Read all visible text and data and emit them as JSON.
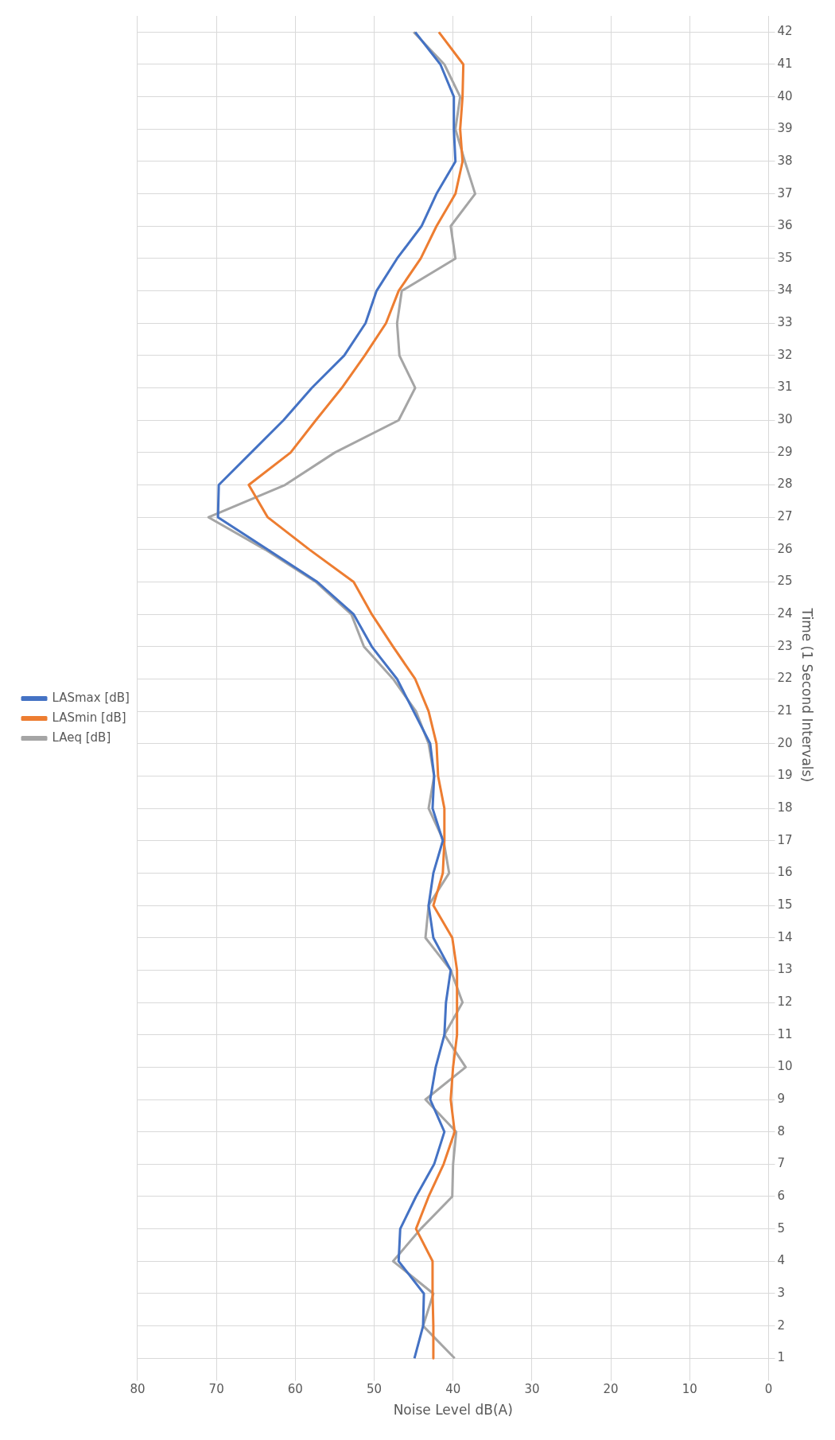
{
  "chart_data": {
    "type": "line",
    "orientation": "horizontal",
    "xlabel": "Noise Level dB(A)",
    "ylabel": "Time (1 Second Intervals)",
    "categories": [
      "42",
      "41",
      "40",
      "39",
      "38",
      "37",
      "36",
      "35",
      "34",
      "33",
      "32",
      "31",
      "30",
      "29",
      "28",
      "27",
      "26",
      "25",
      "24",
      "23",
      "22",
      "21",
      "20",
      "19",
      "18",
      "17",
      "16",
      "15",
      "14",
      "13",
      "12",
      "11",
      "10",
      "9",
      "8",
      "7",
      "6",
      "5",
      "4",
      "3",
      "2",
      "1"
    ],
    "xlim": [
      80,
      0
    ],
    "xticks": [
      80,
      70,
      60,
      50,
      40,
      30,
      20,
      10,
      0
    ],
    "grid": true,
    "legend": "left",
    "marker": "none",
    "line_style": "solid",
    "series": [
      {
        "name": "LASmax [dB]",
        "color": "#4472c4",
        "values": [
          44.8,
          41.6,
          39.9,
          39.9,
          39.7,
          42.1,
          44,
          47.1,
          49.7,
          51.1,
          53.8,
          57.9,
          61.5,
          65.6,
          69.7,
          69.8,
          63.5,
          57.2,
          52.6,
          50.3,
          47.1,
          45,
          42.9,
          42.4,
          42.6,
          41.3,
          42.5,
          43.1,
          42.5,
          40.3,
          40.9,
          41.1,
          42.2,
          42.9,
          41.1,
          42.4,
          44.7,
          46.7,
          46.9,
          43.7,
          43.8,
          44.9
        ]
      },
      {
        "name": "LASmin [dB]",
        "color": "#ed7d31",
        "values": [
          41.8,
          38.7,
          38.8,
          39.1,
          38.8,
          39.7,
          42.1,
          44.1,
          46.9,
          48.5,
          51.2,
          54.1,
          57.4,
          60.6,
          65.9,
          63.5,
          58.2,
          52.6,
          50.3,
          47.6,
          44.8,
          43.1,
          42.1,
          41.9,
          41.1,
          41.1,
          41.3,
          42.5,
          40.1,
          39.5,
          39.5,
          39.5,
          40,
          40.3,
          39.8,
          41.2,
          43.1,
          44.7,
          42.6,
          42.6,
          42.5,
          42.5
        ]
      },
      {
        "name": "LAeq [dB]",
        "color": "#a5a5a5",
        "values": [
          45,
          41.1,
          39.1,
          39.7,
          38.5,
          37.2,
          40.3,
          39.7,
          46.5,
          47.1,
          46.8,
          44.8,
          46.9,
          55,
          61.3,
          71,
          63.8,
          57.4,
          52.9,
          51.3,
          47.6,
          44.7,
          43.1,
          42.4,
          43.1,
          41.2,
          40.5,
          43.1,
          43.5,
          40.3,
          38.8,
          41.1,
          38.4,
          43.5,
          39.6,
          40,
          40.1,
          44.1,
          47.6,
          42.5,
          43.8,
          39.8
        ]
      }
    ]
  }
}
